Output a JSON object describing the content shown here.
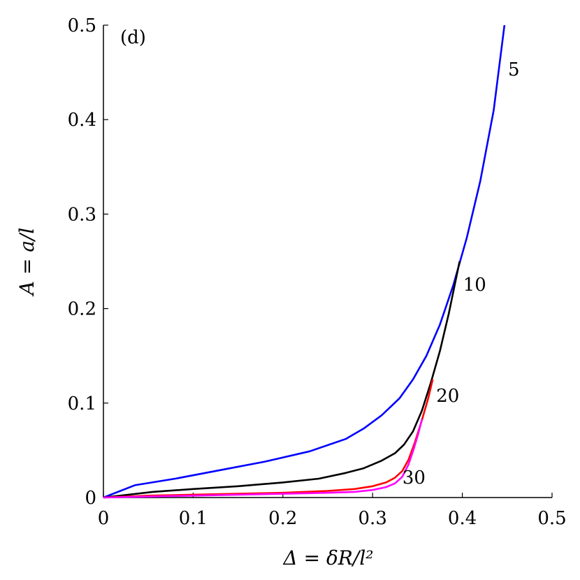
{
  "chart_data": {
    "type": "line",
    "panel_label": "(d)",
    "xlabel": "Δ = δR/l²",
    "ylabel": "A = a/l",
    "xlim": [
      0,
      0.5
    ],
    "ylim": [
      0,
      0.5
    ],
    "x_ticks": [
      "0",
      "0.1",
      "0.2",
      "0.3",
      "0.4",
      "0.5"
    ],
    "y_ticks": [
      "0",
      "0.1",
      "0.2",
      "0.3",
      "0.4",
      "0.5"
    ],
    "grid": false,
    "legend": "none",
    "series": [
      {
        "label": "5",
        "color": "#0000ff",
        "x": [
          0,
          0.035,
          0.08,
          0.13,
          0.18,
          0.23,
          0.27,
          0.29,
          0.31,
          0.33,
          0.345,
          0.36,
          0.375,
          0.39,
          0.405,
          0.42,
          0.435,
          0.447
        ],
        "y": [
          0,
          0.013,
          0.02,
          0.029,
          0.038,
          0.049,
          0.062,
          0.073,
          0.087,
          0.105,
          0.125,
          0.15,
          0.183,
          0.225,
          0.275,
          0.335,
          0.41,
          0.5
        ]
      },
      {
        "label": "10",
        "color": "#000000",
        "x": [
          0,
          0.055,
          0.1,
          0.15,
          0.2,
          0.24,
          0.27,
          0.29,
          0.31,
          0.325,
          0.335,
          0.345,
          0.355,
          0.365,
          0.375,
          0.385,
          0.397
        ],
        "y": [
          0,
          0.006,
          0.009,
          0.012,
          0.016,
          0.02,
          0.026,
          0.031,
          0.039,
          0.047,
          0.056,
          0.07,
          0.092,
          0.122,
          0.155,
          0.195,
          0.25
        ]
      },
      {
        "label": "20",
        "color": "#ff0000",
        "x": [
          0,
          0.05,
          0.1,
          0.15,
          0.2,
          0.25,
          0.28,
          0.3,
          0.315,
          0.325,
          0.333,
          0.34,
          0.347,
          0.355,
          0.362,
          0.367
        ],
        "y": [
          0,
          0.002,
          0.003,
          0.004,
          0.005,
          0.007,
          0.009,
          0.012,
          0.016,
          0.021,
          0.028,
          0.04,
          0.058,
          0.082,
          0.105,
          0.125
        ]
      },
      {
        "label": "30",
        "color": "#ff00ff",
        "x": [
          0,
          0.05,
          0.1,
          0.15,
          0.2,
          0.25,
          0.28,
          0.3,
          0.315,
          0.325,
          0.333,
          0.34,
          0.346,
          0.351,
          0.355
        ],
        "y": [
          0,
          0.001,
          0.002,
          0.003,
          0.004,
          0.005,
          0.006,
          0.008,
          0.011,
          0.015,
          0.022,
          0.035,
          0.052,
          0.068,
          0.083
        ]
      }
    ]
  }
}
